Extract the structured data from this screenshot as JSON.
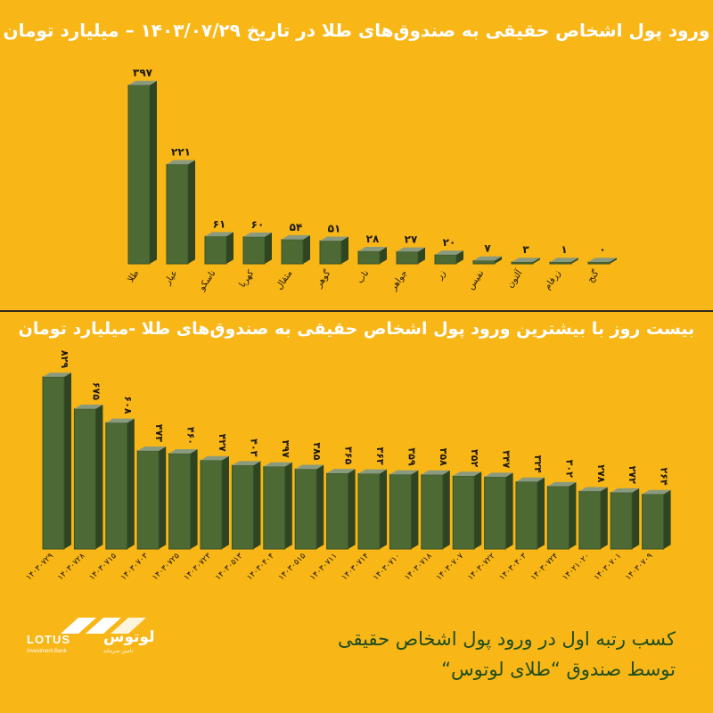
{
  "chart_data": [
    {
      "type": "bar",
      "title": "ورود پول اشخاص حقیقی به صندوق‌های طلا در تاریخ ۱۴۰۳/۰۷/۲۹ – میلیارد تومان",
      "categories": [
        "طلا",
        "عیار",
        "ناسکو",
        "کهربا",
        "مثقال",
        "گوهر",
        "ناب",
        "جواهر",
        "زر",
        "نفیس",
        "آلتون",
        "زرفام",
        "گنج"
      ],
      "value_labels": [
        "۳۹۷",
        "۲۲۱",
        "۶۱",
        "۶۰",
        "۵۴",
        "۵۱",
        "۲۸",
        "۲۷",
        "۲۰",
        "۷",
        "۳",
        "۱",
        "۰"
      ],
      "values": [
        397,
        221,
        61,
        60,
        54,
        51,
        28,
        27,
        20,
        7,
        3,
        1,
        0
      ],
      "ylim": [
        0,
        400
      ],
      "grid": false
    },
    {
      "type": "bar",
      "title": "بیست روز با بیشترین ورود پول اشخاص حقیقی به صندوق‌های طلا -میلیارد تومان",
      "categories": [
        "۱۴۰۳۰۷۲۹",
        "۱۴۰۳۰۷۲۸",
        "۱۴۰۳۰۷۱۵",
        "۱۴۰۳۰۷۰۳",
        "۱۴۰۳۰۷۲۵",
        "۱۴۰۳۰۷۲۳",
        "۱۴۰۳۰۵۱۳",
        "۱۴۰۳۰۴۰۴",
        "۱۴۰۳۰۵۱۵",
        "۱۴۰۳۰۷۱۱",
        "۱۴۰۳۰۷۱۴",
        "۱۴۰۳۰۷۱۰",
        "۱۴۰۳۰۷۱۸",
        "۱۴۰۳۰۷۰۷",
        "۱۴۰۳۰۷۲۲",
        "۱۴۰۳۰۴۰۳",
        "۱۴۰۳۰۷۲۴",
        "۱۴۰۲۱۰۲۰",
        "۱۴۰۳۰۷۰۱",
        "۱۴۰۳۰۷۰۹"
      ],
      "value_labels": [
        "۸۲۹",
        "۶۷۵",
        "۶۰۸",
        "۴۷۳",
        "۴۶۰",
        "۴۲۷",
        "۴۰۳",
        "۳۹۷",
        "۳۸۵",
        "۳۶۵",
        "۳۶۳",
        "۳۵۹",
        "۳۵۸",
        "۳۵۲",
        "۳۴۷",
        "۳۲۴",
        "۳۰۲",
        "۲۷۸",
        "۲۷۲",
        "۲۶۴"
      ],
      "values": [
        829,
        675,
        608,
        473,
        460,
        427,
        403,
        397,
        385,
        365,
        363,
        359,
        358,
        352,
        347,
        324,
        302,
        278,
        272,
        264
      ],
      "ylim": [
        0,
        850
      ],
      "grid": false
    }
  ],
  "footer": {
    "line1": "کسب رتبه اول در ورود پول اشخاص حقیقی",
    "line2": "توسط صندوق “طلای لوتوس“"
  },
  "logo": {
    "name_en": "LOTUS",
    "name_fa": "لوتوس",
    "sub_en": "Investment Bank",
    "sub_fa": "تامین سرمایه"
  },
  "colors": {
    "background": "#F8B617",
    "bar_front": "#4E6A34",
    "bar_top": "#8A9A7E",
    "bar_side": "#2F4421",
    "title": "#FFFFFF",
    "label": "#1E1A12",
    "footer_text": "#1E4D1E"
  }
}
